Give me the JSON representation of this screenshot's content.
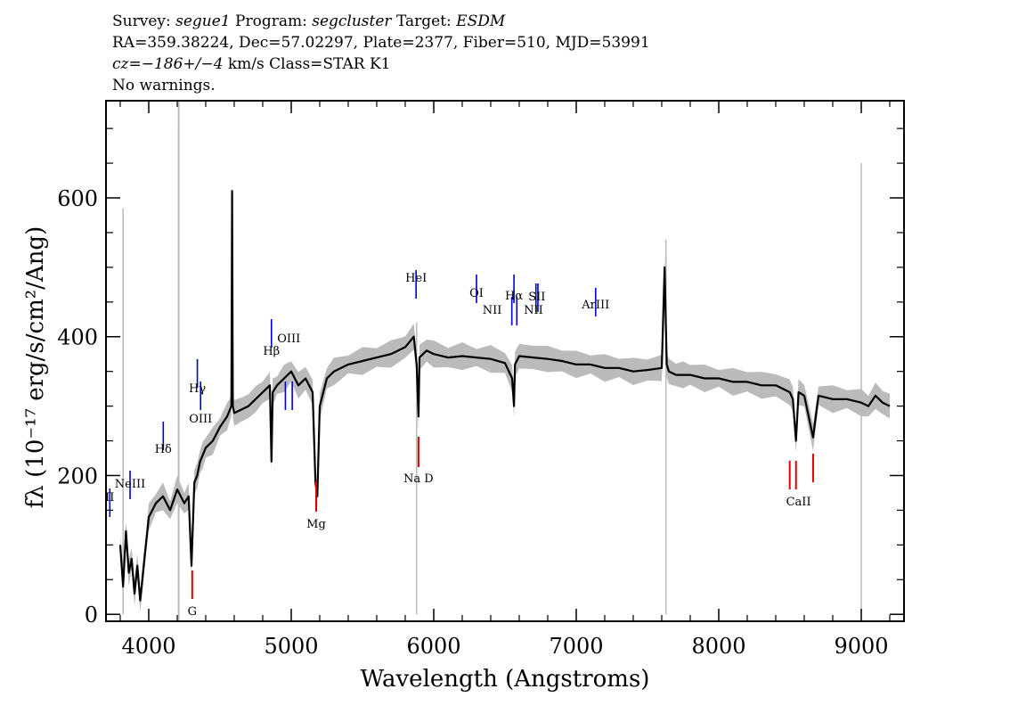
{
  "header": {
    "line1": {
      "survey_label": "Survey: ",
      "survey": "segue1",
      "program_label": " Program: ",
      "program": "segcluster",
      "target_label": " Target: ",
      "target": "ESDM"
    },
    "line2": "RA=359.38224, Dec=57.02297, Plate=2377, Fiber=510, MJD=53991",
    "line3": {
      "cz": "cz=−186+/−4",
      "rest": " km/s Class=STAR K1"
    },
    "line4": "No warnings."
  },
  "chart_data": {
    "type": "line",
    "xlabel": "Wavelength (Angstroms)",
    "ylabel": "fλ (10⁻¹⁷ erg/s/cm²/Ang)",
    "xlim": [
      3700,
      9300
    ],
    "ylim": [
      -10,
      740
    ],
    "grid": false,
    "x_ticks": [
      4000,
      5000,
      6000,
      7000,
      8000,
      9000
    ],
    "y_ticks": [
      0,
      200,
      400,
      600
    ],
    "series": [
      {
        "name": "flux",
        "color": "#000000",
        "x": [
          3800,
          3820,
          3840,
          3860,
          3880,
          3900,
          3920,
          3940,
          3960,
          3980,
          4000,
          4050,
          4100,
          4150,
          4200,
          4250,
          4280,
          4300,
          4320,
          4340,
          4360,
          4380,
          4400,
          4450,
          4500,
          4550,
          4580,
          4585,
          4590,
          4600,
          4650,
          4700,
          4750,
          4800,
          4850,
          4861,
          4870,
          4900,
          4950,
          5000,
          5050,
          5100,
          5150,
          5170,
          5183,
          5200,
          5250,
          5300,
          5400,
          5500,
          5600,
          5700,
          5800,
          5860,
          5880,
          5893,
          5900,
          5950,
          6000,
          6100,
          6200,
          6300,
          6400,
          6500,
          6550,
          6563,
          6570,
          6600,
          6700,
          6800,
          6900,
          7000,
          7100,
          7200,
          7300,
          7400,
          7500,
          7600,
          7620,
          7635,
          7650,
          7700,
          7750,
          7800,
          7900,
          8000,
          8100,
          8200,
          8300,
          8400,
          8498,
          8520,
          8542,
          8560,
          8600,
          8662,
          8700,
          8800,
          8900,
          9000,
          9050,
          9100,
          9150,
          9200
        ],
        "values": [
          100,
          40,
          120,
          60,
          80,
          30,
          70,
          20,
          60,
          100,
          140,
          160,
          170,
          150,
          180,
          160,
          170,
          70,
          190,
          200,
          220,
          230,
          240,
          250,
          270,
          285,
          300,
          610,
          300,
          290,
          295,
          300,
          310,
          320,
          330,
          220,
          320,
          330,
          340,
          350,
          330,
          340,
          320,
          190,
          170,
          300,
          340,
          350,
          360,
          365,
          370,
          375,
          385,
          400,
          360,
          285,
          370,
          380,
          375,
          370,
          372,
          370,
          368,
          362,
          340,
          300,
          360,
          372,
          370,
          368,
          365,
          360,
          360,
          355,
          355,
          350,
          352,
          355,
          500,
          360,
          350,
          345,
          345,
          345,
          340,
          340,
          335,
          335,
          330,
          330,
          320,
          310,
          250,
          320,
          315,
          255,
          315,
          310,
          310,
          305,
          300,
          315,
          305,
          300
        ]
      },
      {
        "name": "error",
        "color": "#bbbbbb",
        "x": [
          3700,
          3820,
          3830,
          4210,
          4580,
          4590,
          5880,
          7630,
          8990,
          9000,
          9010
        ],
        "values": [
          0,
          585,
          0,
          700,
          675,
          0,
          420,
          540,
          450,
          650,
          300
        ]
      }
    ],
    "emission_lines": [
      {
        "label": "II",
        "x": 3727
      },
      {
        "label": "NeIII",
        "x": 3869
      },
      {
        "label": "Hδ",
        "x": 4102
      },
      {
        "label": "Hγ",
        "x": 4341
      },
      {
        "label": "OIII",
        "x": 4364
      },
      {
        "label": "Hβ",
        "x": 4861
      },
      {
        "label": "OIII",
        "x": 4959
      },
      {
        "label": "OIII",
        "x": 5007
      },
      {
        "label": "HeI",
        "x": 5876
      },
      {
        "label": "OI",
        "x": 6300
      },
      {
        "label": "NII",
        "x": 6548
      },
      {
        "label": "Hα",
        "x": 6563
      },
      {
        "label": "NII",
        "x": 6583
      },
      {
        "label": "SII",
        "x": 6717
      },
      {
        "label": "SII",
        "x": 6731
      },
      {
        "label": "ArIII",
        "x": 7136
      }
    ],
    "absorption_lines": [
      {
        "label": "G",
        "x": 4305
      },
      {
        "label": "Mg",
        "x": 5175
      },
      {
        "label": "Na D",
        "x": 5893
      },
      {
        "label": "CaII",
        "x": 8498
      },
      {
        "label": "CaII",
        "x": 8542
      },
      {
        "label": "CaII",
        "x": 8662
      }
    ],
    "emission_label_text": [
      "II",
      "NeIII",
      "Hδ",
      "Hγ",
      "OIII",
      "Hβ",
      "OIII",
      "HeI",
      "OI",
      "NII",
      "Hα",
      "NII",
      "SII",
      "ArIII"
    ],
    "absorption_label_text": [
      "G",
      "Mg",
      "Na D",
      "CaII"
    ],
    "colors": {
      "emission": "#0000cc",
      "absorption": "#dd0000",
      "error": "#bbbbbb",
      "flux": "#000000",
      "marker": "#bbbbbb"
    }
  }
}
